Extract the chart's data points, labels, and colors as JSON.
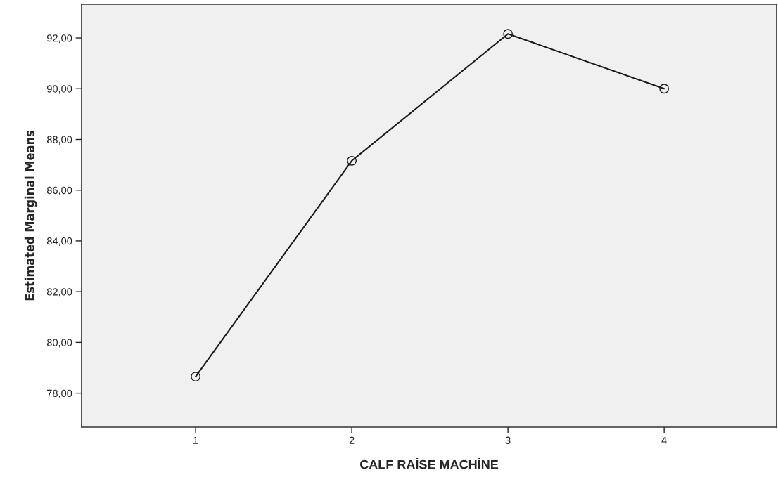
{
  "chart_data": {
    "type": "line",
    "xlabel": "CALF RAİSE MACHİNE",
    "ylabel": "Estimated Marginal Means",
    "x": [
      1,
      2,
      3,
      4
    ],
    "xlim": [
      0.27,
      4.72
    ],
    "xticks": [
      1,
      2,
      3,
      4
    ],
    "ylim": [
      76.66,
      93.33
    ],
    "yticks": [
      {
        "value": 78,
        "label": "78,00"
      },
      {
        "value": 80,
        "label": "80,00"
      },
      {
        "value": 82,
        "label": "82,00"
      },
      {
        "value": 84,
        "label": "84,00"
      },
      {
        "value": 86,
        "label": "86,00"
      },
      {
        "value": 88,
        "label": "88,00"
      },
      {
        "value": 90,
        "label": "90,00"
      },
      {
        "value": 92,
        "label": "92,00"
      }
    ],
    "series": [
      {
        "color": "#1a1a1a",
        "values": [
          78.65,
          87.16,
          92.16,
          90.0
        ]
      }
    ],
    "marker": "circle",
    "line_style": "solid",
    "grid": false,
    "legend": false
  }
}
